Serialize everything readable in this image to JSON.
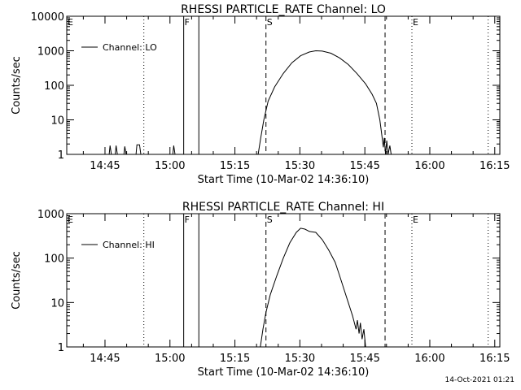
{
  "footer_timestamp": "14-Oct-2021 01:21",
  "chart_data": [
    {
      "type": "line",
      "title": "RHESSI PARTICLE_RATE Channel: LO",
      "xlabel": "Start Time (10-Mar-02 14:36:10)",
      "ylabel": "Counts/sec",
      "yscale": "log",
      "x_unit": "minutes since 14:36:10",
      "xlim": [
        0,
        100
      ],
      "ylim": [
        1,
        10000
      ],
      "x_ticks": [
        {
          "x": 8.83,
          "label": "14:45"
        },
        {
          "x": 23.83,
          "label": "15:00"
        },
        {
          "x": 38.83,
          "label": "15:15"
        },
        {
          "x": 53.83,
          "label": "15:30"
        },
        {
          "x": 68.83,
          "label": "15:45"
        },
        {
          "x": 83.83,
          "label": "16:00"
        },
        {
          "x": 98.83,
          "label": "16:15"
        }
      ],
      "y_ticks": [
        {
          "y": 1,
          "label": "1"
        },
        {
          "y": 10,
          "label": "10"
        },
        {
          "y": 100,
          "label": "100"
        },
        {
          "y": 1000,
          "label": "1000"
        },
        {
          "y": 10000,
          "label": "10000"
        }
      ],
      "legend": {
        "position": "top-left",
        "entries": [
          "Channel: LO"
        ]
      },
      "markers": [
        {
          "x": 0,
          "label": "E",
          "style": "dotted"
        },
        {
          "x": 17.8,
          "label": "",
          "style": "dotted"
        },
        {
          "x": 27.0,
          "label": "F",
          "style": "solid"
        },
        {
          "x": 30.5,
          "label": "",
          "style": "solid"
        },
        {
          "x": 46.0,
          "label": "S",
          "style": "dashed"
        },
        {
          "x": 73.5,
          "label": "",
          "style": "dashed"
        },
        {
          "x": 79.7,
          "label": "E",
          "style": "dotted"
        },
        {
          "x": 97.3,
          "label": "",
          "style": "dotted"
        }
      ],
      "series": [
        {
          "name": "Channel: LO",
          "points": [
            [
              9.8,
              1
            ],
            [
              10.0,
              1.8
            ],
            [
              10.3,
              1
            ],
            [
              11.2,
              1
            ],
            [
              11.4,
              1.8
            ],
            [
              11.7,
              1
            ],
            [
              13.2,
              1
            ],
            [
              13.4,
              1.7
            ],
            [
              13.7,
              1
            ],
            [
              16.0,
              1
            ],
            [
              16.2,
              1.9
            ],
            [
              16.8,
              1.9
            ],
            [
              17.1,
              1
            ],
            [
              24.5,
              1
            ],
            [
              24.7,
              1.8
            ],
            [
              25.0,
              1
            ],
            [
              44.2,
              1
            ],
            [
              44.8,
              3
            ],
            [
              45.5,
              10
            ],
            [
              46.5,
              35
            ],
            [
              48,
              90
            ],
            [
              50,
              220
            ],
            [
              52,
              450
            ],
            [
              54,
              720
            ],
            [
              56,
              920
            ],
            [
              57.5,
              1000
            ],
            [
              59,
              980
            ],
            [
              61,
              850
            ],
            [
              63,
              620
            ],
            [
              65,
              400
            ],
            [
              67,
              220
            ],
            [
              69,
              110
            ],
            [
              70.5,
              55
            ],
            [
              71.5,
              30
            ],
            [
              72.3,
              10
            ],
            [
              72.7,
              4
            ],
            [
              73.1,
              1.6
            ],
            [
              73.3,
              3
            ],
            [
              73.6,
              1
            ],
            [
              73.9,
              2.5
            ],
            [
              74.2,
              1
            ],
            [
              74.6,
              1.8
            ],
            [
              74.9,
              1
            ]
          ]
        }
      ]
    },
    {
      "type": "line",
      "title": "RHESSI PARTICLE_RATE Channel: HI",
      "xlabel": "Start Time (10-Mar-02 14:36:10)",
      "ylabel": "Counts/sec",
      "yscale": "log",
      "x_unit": "minutes since 14:36:10",
      "xlim": [
        0,
        100
      ],
      "ylim": [
        1,
        1000
      ],
      "x_ticks": [
        {
          "x": 8.83,
          "label": "14:45"
        },
        {
          "x": 23.83,
          "label": "15:00"
        },
        {
          "x": 38.83,
          "label": "15:15"
        },
        {
          "x": 53.83,
          "label": "15:30"
        },
        {
          "x": 68.83,
          "label": "15:45"
        },
        {
          "x": 83.83,
          "label": "16:00"
        },
        {
          "x": 98.83,
          "label": "16:15"
        }
      ],
      "y_ticks": [
        {
          "y": 1,
          "label": "1"
        },
        {
          "y": 10,
          "label": "10"
        },
        {
          "y": 100,
          "label": "100"
        },
        {
          "y": 1000,
          "label": "1000"
        }
      ],
      "legend": {
        "position": "top-left",
        "entries": [
          "Channel: HI"
        ]
      },
      "markers": [
        {
          "x": 0,
          "label": "E",
          "style": "dotted"
        },
        {
          "x": 17.8,
          "label": "",
          "style": "dotted"
        },
        {
          "x": 27.0,
          "label": "F",
          "style": "solid"
        },
        {
          "x": 30.5,
          "label": "",
          "style": "solid"
        },
        {
          "x": 46.0,
          "label": "S",
          "style": "dashed"
        },
        {
          "x": 73.5,
          "label": "",
          "style": "dashed"
        },
        {
          "x": 79.7,
          "label": "E",
          "style": "dotted"
        },
        {
          "x": 97.3,
          "label": "",
          "style": "dotted"
        }
      ],
      "series": [
        {
          "name": "Channel: HI",
          "points": [
            [
              44.7,
              1
            ],
            [
              45.3,
              2.5
            ],
            [
              46,
              6
            ],
            [
              47,
              15
            ],
            [
              48.5,
              40
            ],
            [
              50,
              100
            ],
            [
              51.5,
              220
            ],
            [
              53,
              380
            ],
            [
              54,
              470
            ],
            [
              55,
              450
            ],
            [
              56,
              400
            ],
            [
              57.5,
              380
            ],
            [
              59,
              260
            ],
            [
              60.5,
              150
            ],
            [
              62,
              80
            ],
            [
              63,
              40
            ],
            [
              64,
              20
            ],
            [
              65,
              10
            ],
            [
              66,
              5
            ],
            [
              66.8,
              2.5
            ],
            [
              67.1,
              4
            ],
            [
              67.5,
              2
            ],
            [
              67.8,
              3.5
            ],
            [
              68.2,
              1.5
            ],
            [
              68.6,
              2.5
            ],
            [
              69.0,
              1
            ]
          ]
        }
      ]
    }
  ]
}
